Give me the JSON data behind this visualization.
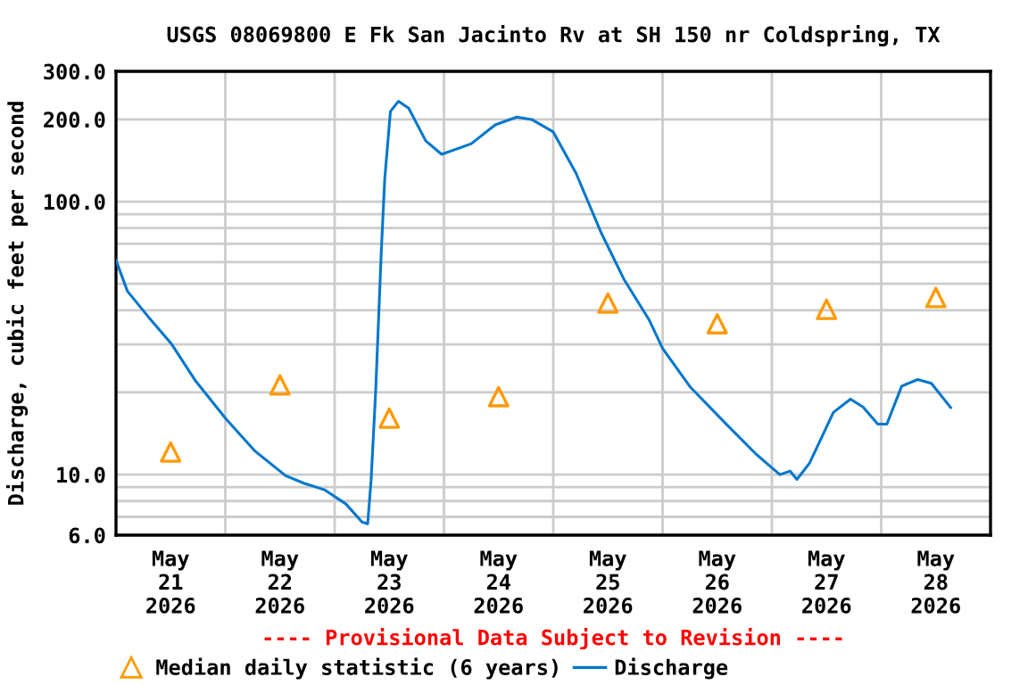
{
  "chart_data": {
    "type": "line",
    "title": "USGS 08069800 E Fk San Jacinto Rv at SH 150 nr Coldspring, TX",
    "ylabel": "Discharge, cubic feet per second",
    "annotations": [
      "---- Provisional Data Subject to Revision ----"
    ],
    "log": "y",
    "grid": true,
    "legend": "bottom",
    "xlim": [
      "2026-05-21T00:00",
      "2026-05-29T00:00"
    ],
    "xticks": [
      {
        "value": "2026-05-21T12:00",
        "label": "May\n21\n2026"
      },
      {
        "value": "2026-05-22T12:00",
        "label": "May\n22\n2026"
      },
      {
        "value": "2026-05-23T12:00",
        "label": "May\n23\n2026"
      },
      {
        "value": "2026-05-24T12:00",
        "label": "May\n24\n2026"
      },
      {
        "value": "2026-05-25T12:00",
        "label": "May\n25\n2026"
      },
      {
        "value": "2026-05-26T12:00",
        "label": "May\n26\n2026"
      },
      {
        "value": "2026-05-27T12:00",
        "label": "May\n27\n2026"
      },
      {
        "value": "2026-05-28T12:00",
        "label": "May\n28\n2026"
      },
      {
        "value": "2026-05-22T00:00",
        "label": null
      },
      {
        "value": "2026-05-23T00:00",
        "label": null
      },
      {
        "value": "2026-05-24T00:00",
        "label": null
      },
      {
        "value": "2026-05-25T00:00",
        "label": null
      },
      {
        "value": "2026-05-26T00:00",
        "label": null
      },
      {
        "value": "2026-05-27T00:00",
        "label": null
      },
      {
        "value": "2026-05-28T00:00",
        "label": null
      }
    ],
    "ylim": [
      6,
      300
    ],
    "yticks": [
      {
        "value": 6,
        "label": "6.0"
      },
      {
        "value": 7,
        "label": null
      },
      {
        "value": 8,
        "label": null
      },
      {
        "value": 9,
        "label": null
      },
      {
        "value": 10,
        "label": "10.0"
      },
      {
        "value": 20,
        "label": null
      },
      {
        "value": 30,
        "label": null
      },
      {
        "value": 40,
        "label": null
      },
      {
        "value": 50,
        "label": null
      },
      {
        "value": 60,
        "label": null
      },
      {
        "value": 70,
        "label": null
      },
      {
        "value": 80,
        "label": null
      },
      {
        "value": 90,
        "label": null
      },
      {
        "value": 100,
        "label": "100.0"
      },
      {
        "value": 200,
        "label": "200.0"
      },
      {
        "value": 300,
        "label": "300.0"
      }
    ],
    "series": [
      {
        "name": "Median daily statistic (6 years)",
        "type": "scatter",
        "marker": "triangle",
        "color": "#ff9900",
        "x": [
          "2026-05-21T12:00",
          "2026-05-22T12:00",
          "2026-05-23T12:00",
          "2026-05-24T12:00",
          "2026-05-25T12:00",
          "2026-05-26T12:00",
          "2026-05-27T12:00",
          "2026-05-28T12:00"
        ],
        "values": [
          12.1,
          21.3,
          16.1,
          19.3,
          42.5,
          35.7,
          40.3,
          44.5
        ]
      },
      {
        "name": "Discharge",
        "color": "#0077cc",
        "x": [
          "2026-05-21T00:00",
          "2026-05-21T02:30",
          "2026-05-21T07:00",
          "2026-05-21T12:15",
          "2026-05-21T17:30",
          "2026-05-22T00:00",
          "2026-05-22T06:30",
          "2026-05-22T13:15",
          "2026-05-22T17:15",
          "2026-05-22T21:45",
          "2026-05-23T02:30",
          "2026-05-23T06:00",
          "2026-05-23T07:15",
          "2026-05-23T08:00",
          "2026-05-23T09:00",
          "2026-05-23T10:15",
          "2026-05-23T11:00",
          "2026-05-23T12:15",
          "2026-05-23T14:00",
          "2026-05-23T16:15",
          "2026-05-23T20:00",
          "2026-05-23T23:30",
          "2026-05-24T06:00",
          "2026-05-24T11:15",
          "2026-05-24T16:00",
          "2026-05-24T19:15",
          "2026-05-25T00:00",
          "2026-05-25T05:00",
          "2026-05-25T10:30",
          "2026-05-25T15:30",
          "2026-05-25T21:00",
          "2026-05-26T00:00",
          "2026-05-26T06:00",
          "2026-05-26T14:00",
          "2026-05-26T20:30",
          "2026-05-27T01:45",
          "2026-05-27T04:00",
          "2026-05-27T05:30",
          "2026-05-27T08:15",
          "2026-05-27T13:30",
          "2026-05-27T17:15",
          "2026-05-27T20:00",
          "2026-05-27T23:15",
          "2026-05-28T01:15",
          "2026-05-28T04:30",
          "2026-05-28T08:00",
          "2026-05-28T11:00",
          "2026-05-28T15:15"
        ],
        "values": [
          61,
          47,
          38,
          30,
          22,
          16.1,
          12.2,
          9.9,
          9.3,
          8.8,
          7.8,
          6.7,
          6.6,
          9.5,
          20,
          66,
          121,
          214,
          233,
          220,
          167,
          149,
          163,
          191,
          204,
          200,
          180,
          127,
          77,
          52,
          37,
          29,
          21,
          15.3,
          11.9,
          10.0,
          10.3,
          9.6,
          11.0,
          16.9,
          18.9,
          17.7,
          15.3,
          15.3,
          21.1,
          22.3,
          21.6,
          17.6
        ]
      }
    ]
  }
}
